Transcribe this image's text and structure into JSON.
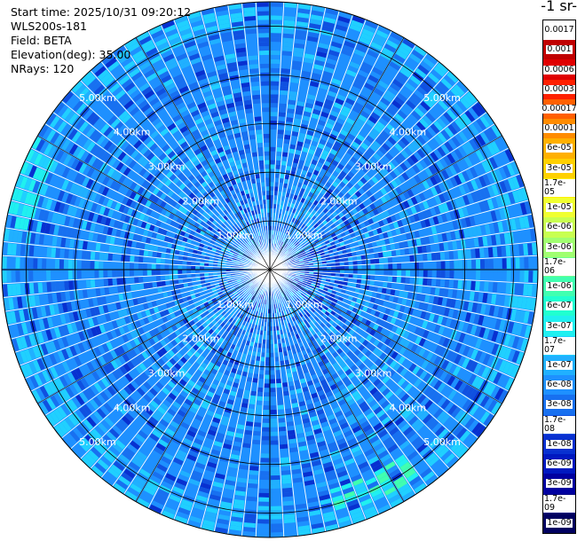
{
  "header": {
    "start_time": "Start time: 2025/10/31 09:20:12",
    "instrument": "WLS200s-181",
    "field": "Field: BETA",
    "elevation": "Elevation(deg): 35.00",
    "nrays": "NRays: 120"
  },
  "colorbar": {
    "title": "-1 sr-",
    "labels": [
      "0.0017",
      "0.001",
      "0.0006",
      "0.0003",
      "0.00017",
      "0.0001",
      "6e-05",
      "3e-05",
      "1.7e-05",
      "1e-05",
      "6e-06",
      "3e-06",
      "1.7e-06",
      "1e-06",
      "6e-07",
      "3e-07",
      "1.7e-07",
      "1e-07",
      "6e-08",
      "3e-08",
      "1.7e-08",
      "1e-08",
      "6e-09",
      "3e-09",
      "1.7e-09",
      "1e-09"
    ],
    "colors": [
      "#ffffff",
      "#c00000",
      "#e00000",
      "#ff2000",
      "#ff6000",
      "#ff8c00",
      "#ffb000",
      "#ffd000",
      "#fff000",
      "#f0ff30",
      "#c8ff50",
      "#a0ff70",
      "#70ff90",
      "#40ffb0",
      "#20ffd0",
      "#20f0f0",
      "#20d0ff",
      "#20b0ff",
      "#1e90ff",
      "#1870f0",
      "#1050e0",
      "#0830d0",
      "#0018c0",
      "#0000a0",
      "#000080",
      "#000060"
    ]
  },
  "chart_data": {
    "type": "polar-ppi",
    "rays": 120,
    "ring_labels": [
      "1.00km",
      "2.00km",
      "3.00km",
      "4.00km",
      "5.00km"
    ],
    "ring_values_km": [
      1,
      2,
      3,
      4,
      5
    ],
    "max_range_km": 5.5,
    "colormap": "log-scale backscatter",
    "dominant_level": "3e-08",
    "high_signal_sectors": [
      {
        "direction": "east",
        "range_km": [
          0.2,
          1.6
        ],
        "level": "1e-08"
      },
      {
        "direction": "south-southeast",
        "range_km": [
          4.6,
          5.2
        ],
        "level": "3e-07"
      }
    ]
  }
}
